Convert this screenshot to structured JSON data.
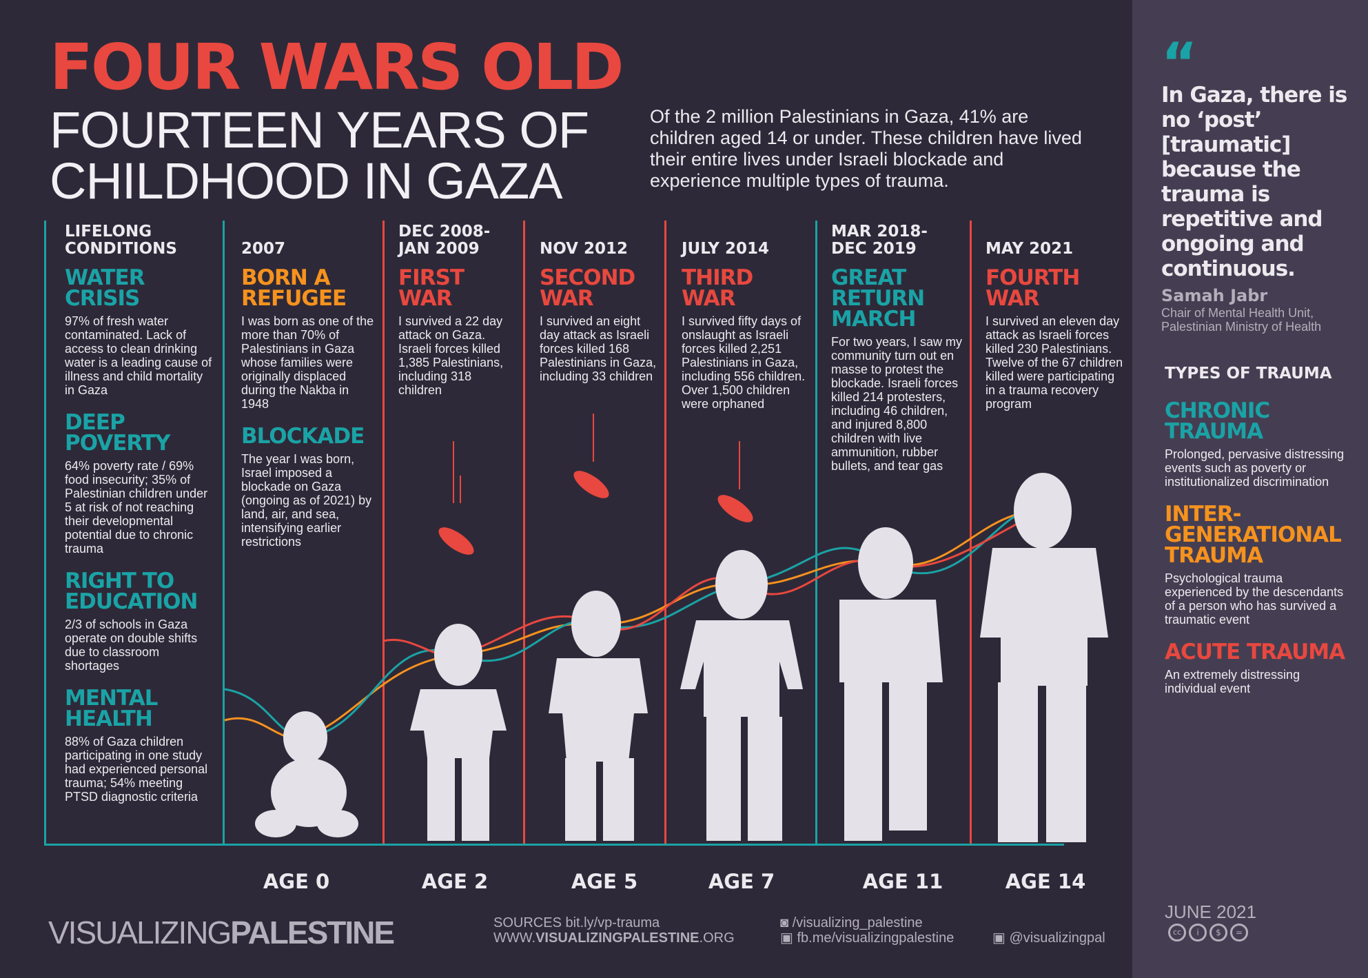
{
  "header": {
    "title": "FOUR WARS OLD",
    "subtitle_line1": "FOURTEEN YEARS OF",
    "subtitle_line2": "CHILDHOOD IN GAZA",
    "intro": "Of the 2 million Palestinians in Gaza, 41% are children aged 14 or under. These children have lived their entire lives under Israeli blockade and experience multiple types of trauma."
  },
  "colors": {
    "background": "#2e2938",
    "sidebar": "#453e52",
    "red": "#e8483f",
    "teal": "#1aa3a6",
    "orange": "#f6921e",
    "text": "#eceaef"
  },
  "lifelong": {
    "header": "LIFELONG CONDITIONS",
    "items": [
      {
        "title": "WATER CRISIS",
        "text": "97% of fresh water contaminated. Lack of access to clean drinking water is a leading cause of illness and child mortality in Gaza"
      },
      {
        "title": "DEEP POVERTY",
        "text": "64% poverty rate / 69% food insecurity; 35% of Palestinian children under 5 at risk of not reaching their developmental potential due to chronic trauma"
      },
      {
        "title": "RIGHT TO EDUCATION",
        "text": "2/3 of schools in Gaza operate on double shifts due to classroom shortages"
      },
      {
        "title": "MENTAL HEALTH",
        "text": "88% of Gaza children participating in one study had experienced personal trauma; 54% meeting PTSD diagnostic criteria"
      }
    ]
  },
  "timeline": [
    {
      "date": "2007",
      "items": [
        {
          "title": "BORN A REFUGEE",
          "color": "orange",
          "text": "I was born as one of the more than 70% of Palestinians in Gaza whose families were originally displaced during the Nakba in 1948"
        },
        {
          "title": "BLOCKADE",
          "color": "teal",
          "text": "The year I was born, Israel imposed a blockade on Gaza (ongoing as of 2021) by land, air, and sea, intensifying earlier restrictions"
        }
      ],
      "age": "AGE 0"
    },
    {
      "date": "DEC 2008- JAN 2009",
      "items": [
        {
          "title": "FIRST WAR",
          "color": "red",
          "text": "I survived a 22 day attack on Gaza. Israeli forces killed 1,385 Palestinians, including 318 children"
        }
      ],
      "age": "AGE 2"
    },
    {
      "date": "NOV 2012",
      "items": [
        {
          "title": "SECOND WAR",
          "color": "red",
          "text": "I survived an eight day attack as Israeli forces killed 168 Palestinians in Gaza, including 33 children"
        }
      ],
      "age": "AGE 5"
    },
    {
      "date": "JULY 2014",
      "items": [
        {
          "title": "THIRD WAR",
          "color": "red",
          "text": "I survived fifty days of onslaught as Israeli forces killed 2,251 Palestinians in Gaza, including 556 children. Over 1,500 children were orphaned"
        }
      ],
      "age": "AGE 7"
    },
    {
      "date": "MAR 2018- DEC 2019",
      "items": [
        {
          "title": "GREAT RETURN MARCH",
          "color": "teal",
          "text": "For two years, I saw my community turn out en masse to protest the blockade. Israeli forces killed 214 protesters, including 46 children, and injured 8,800 children with live ammunition, rubber bullets, and tear gas"
        }
      ],
      "age": "AGE 11"
    },
    {
      "date": "MAY 2021",
      "items": [
        {
          "title": "FOURTH WAR",
          "color": "red",
          "text": "I survived an eleven day attack as Israeli forces killed 230 Palestinians. Twelve of the 67 children killed were participating in a trauma recovery program"
        }
      ],
      "age": "AGE 14"
    }
  ],
  "sidebar": {
    "quote_mark": "“",
    "quote": "In Gaza, there is no ‘post’ [traumatic] because the trauma is repetitive and ongoing and continuous.",
    "name": "Samah Jabr",
    "role": "Chair of Mental Health Unit, Palestinian Ministry of Health",
    "types_header": "TYPES OF TRAUMA",
    "types": [
      {
        "title": "CHRONIC TRAUMA",
        "color": "teal",
        "text": "Prolonged, pervasive distressing events such as poverty or institutionalized discrimination"
      },
      {
        "title": "INTER-GENERATIONAL TRAUMA",
        "color": "orange",
        "text": "Psychological trauma experienced by the descendants of a person who has survived a traumatic event"
      },
      {
        "title": "ACUTE TRAUMA",
        "color": "red",
        "text": "An extremely distressing individual event"
      }
    ],
    "date": "JUNE 2021",
    "license_icons": [
      "cc-icon",
      "by-icon",
      "nc-icon",
      "nd-icon"
    ]
  },
  "footer": {
    "logo_light": "VISUALIZING",
    "logo_bold": "PALESTINE",
    "sources": "SOURCES bit.ly/vp-trauma",
    "site_prefix": "WWW.",
    "site_bold": "VISUALIZINGPALESTINE",
    "site_suffix": ".ORG",
    "instagram": "/visualizing_palestine",
    "facebook": "fb.me/visualizingpalestine",
    "twitter": "@visualizingpal"
  }
}
